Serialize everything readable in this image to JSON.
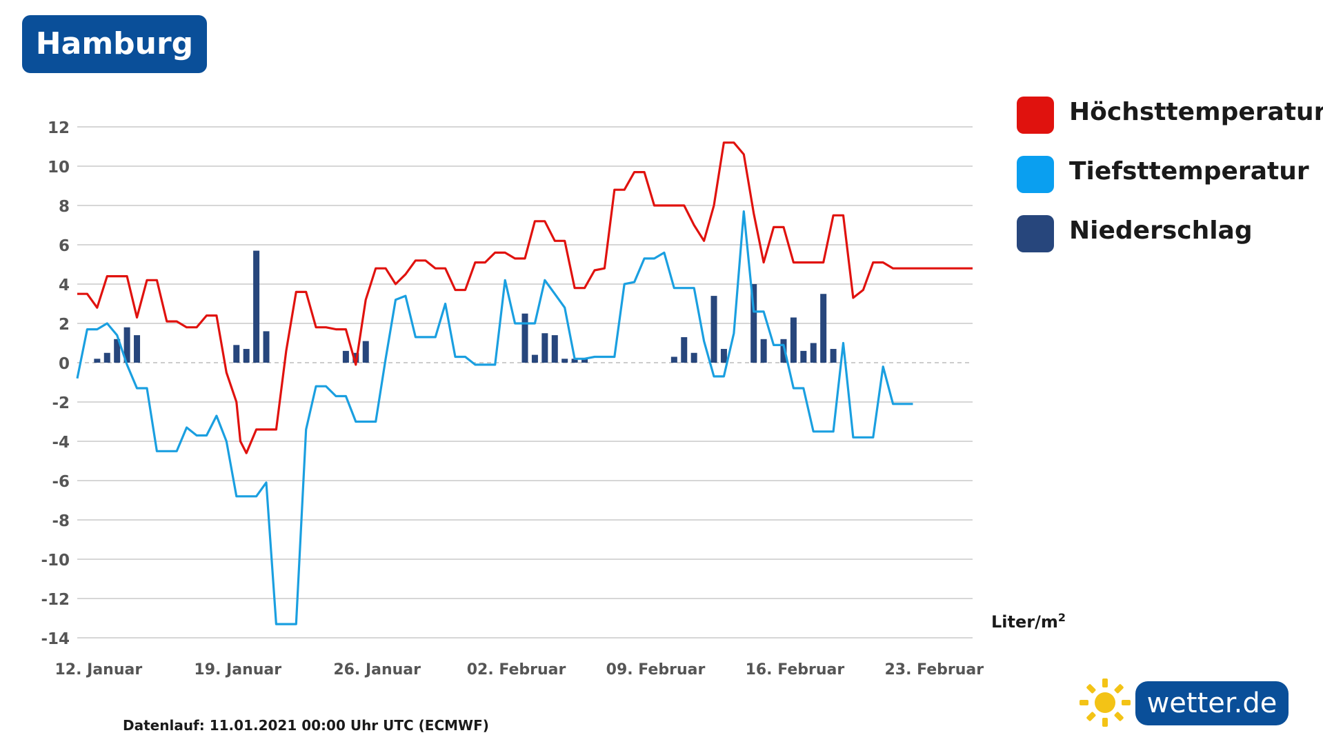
{
  "header": {
    "city": "Hamburg"
  },
  "footer": {
    "run_info": "Datenlauf: 11.01.2021 00:00 Uhr UTC (ECMWF)"
  },
  "logo": {
    "text": "wetter.de"
  },
  "unit": {
    "base": "Liter/m",
    "exp": "2"
  },
  "colors": {
    "max": "#e0120e",
    "min": "#1a9fe0",
    "precip": "#27467c",
    "badge": "#0a4f99",
    "sun": "#f3c316"
  },
  "chart_data": {
    "type": "line",
    "ylim": [
      -14,
      12
    ],
    "yticks": [
      "12",
      "10",
      "8",
      "6",
      "4",
      "2",
      "0",
      "-2",
      "-4",
      "-6",
      "-8",
      "-10",
      "-12",
      "-14"
    ],
    "xlim": [
      0,
      45
    ],
    "x_tick_labels": [
      {
        "x": 1,
        "label": "12. Januar"
      },
      {
        "x": 8,
        "label": "19. Januar"
      },
      {
        "x": 15,
        "label": "26. Januar"
      },
      {
        "x": 22,
        "label": "02. Februar"
      },
      {
        "x": 29,
        "label": "09. Februar"
      },
      {
        "x": 36,
        "label": "16. Februar"
      },
      {
        "x": 43,
        "label": "23. Februar"
      }
    ],
    "legend": [
      "Höchsttemperatur",
      "Tiefsttemperatur",
      "Niederschlag"
    ],
    "series": [
      {
        "name": "Höchsttemperatur",
        "x": [
          0,
          0.5,
          1,
          1.5,
          2,
          2.5,
          3,
          3.5,
          4,
          4.5,
          5,
          5.5,
          6,
          6.5,
          7,
          7.5,
          8,
          8.2,
          8.5,
          9,
          9.5,
          10,
          10.5,
          11,
          11.5,
          12,
          12.5,
          13,
          13.5,
          14,
          14.5,
          15,
          15.5,
          16,
          16.5,
          17,
          17.5,
          18,
          18.5,
          19,
          19.5,
          20,
          20.5,
          21,
          21.5,
          22,
          22.5,
          23,
          23.5,
          24,
          24.5,
          25,
          25.5,
          26,
          26.5,
          27,
          27.5,
          28,
          28.5,
          29,
          29.5,
          30,
          30.5,
          31,
          31.5,
          32,
          32.5,
          33,
          33.5,
          34,
          34.5,
          35,
          35.5,
          36,
          36.5,
          37,
          37.5,
          38,
          38.5,
          39,
          39.5,
          40,
          40.5,
          41,
          41.5,
          42,
          42.5,
          43,
          43.5,
          44,
          44.5,
          45
        ],
        "values": [
          3.5,
          3.5,
          2.8,
          4.4,
          4.4,
          4.4,
          2.3,
          4.2,
          4.2,
          2.1,
          2.1,
          1.8,
          1.8,
          2.4,
          2.4,
          -0.5,
          -2,
          -4,
          -4.6,
          -3.4,
          -3.4,
          -3.4,
          0.6,
          3.6,
          3.6,
          1.8,
          1.8,
          1.7,
          1.7,
          -0.1,
          3.2,
          4.8,
          4.8,
          4,
          4.5,
          5.2,
          5.2,
          4.8,
          4.8,
          3.7,
          3.7,
          5.1,
          5.1,
          5.6,
          5.6,
          5.3,
          5.3,
          7.2,
          7.2,
          6.2,
          6.2,
          3.8,
          3.8,
          4.7,
          4.8,
          8.8,
          8.8,
          9.7,
          9.7,
          8,
          8,
          8,
          8,
          7,
          6.2,
          8,
          11.2,
          11.2,
          10.6,
          7.6,
          5.1,
          6.9,
          6.9,
          5.1,
          5.1,
          5.1,
          5.1,
          7.5,
          7.5,
          3.3,
          3.7,
          5.1,
          5.1,
          4.8,
          4.8,
          4.8,
          4.8,
          4.8,
          4.8,
          4.8,
          4.8,
          4.8
        ]
      },
      {
        "name": "Tiefsttemperatur",
        "x": [
          0,
          0.5,
          1,
          1.5,
          2,
          2.5,
          3,
          3.5,
          4,
          4.5,
          5,
          5.5,
          6,
          6.5,
          7,
          7.5,
          8,
          8.5,
          9,
          9.5,
          10,
          10.5,
          11,
          11.5,
          12,
          12.5,
          13,
          13.5,
          14,
          14.5,
          15,
          15.5,
          16,
          16.5,
          17,
          17.5,
          18,
          18.5,
          19,
          19.5,
          20,
          20.5,
          21,
          21.5,
          22,
          22.5,
          23,
          23.5,
          24,
          24.5,
          25,
          25.5,
          26,
          26.5,
          27,
          27.5,
          28,
          28.5,
          29,
          29.5,
          30,
          30.5,
          31,
          31.5,
          32,
          32.5,
          33,
          33.5,
          34,
          34.5,
          35,
          35.5,
          36,
          36.5,
          37,
          37.5,
          38,
          38.5,
          39,
          39.5,
          40,
          40.5,
          41,
          41.5,
          42
        ],
        "values": [
          -0.8,
          1.7,
          1.7,
          2,
          1.4,
          -0.1,
          -1.3,
          -1.3,
          -4.5,
          -4.5,
          -4.5,
          -3.3,
          -3.7,
          -3.7,
          -2.7,
          -4,
          -6.8,
          -6.8,
          -6.8,
          -6.1,
          -13.3,
          -13.3,
          -13.3,
          -3.4,
          -1.2,
          -1.2,
          -1.7,
          -1.7,
          -3,
          -3,
          -3,
          0.2,
          3.2,
          3.4,
          1.3,
          1.3,
          1.3,
          3,
          0.3,
          0.3,
          -0.1,
          -0.1,
          -0.1,
          4.2,
          2,
          2,
          2,
          4.2,
          3.5,
          2.8,
          0.2,
          0.2,
          0.3,
          0.3,
          0.3,
          4,
          4.1,
          5.3,
          5.3,
          5.6,
          3.8,
          3.8,
          3.8,
          1.1,
          -0.7,
          -0.7,
          1.5,
          7.7,
          2.6,
          2.6,
          0.9,
          0.9,
          -1.3,
          -1.3,
          -3.5,
          -3.5,
          -3.5,
          1,
          -3.8,
          -3.8,
          -3.8,
          -0.2,
          -2.1,
          -2.1,
          -2.1
        ]
      },
      {
        "name": "Niederschlag",
        "type": "bar",
        "x": [
          1,
          1.5,
          2,
          2.5,
          3,
          8,
          8.5,
          9,
          9.5,
          13.5,
          14,
          14.5,
          22.5,
          23,
          23.5,
          24,
          24.5,
          25,
          25.5,
          30,
          30.5,
          31,
          32,
          32.5,
          34,
          34.5,
          35.5,
          36,
          36.5,
          37,
          37.5,
          38
        ],
        "values": [
          0.2,
          0.5,
          1.2,
          1.8,
          1.4,
          0.9,
          0.7,
          5.7,
          1.6,
          0.6,
          0.5,
          1.1,
          2.5,
          0.4,
          1.5,
          1.4,
          0.2,
          0.2,
          0.2,
          0.3,
          1.3,
          0.5,
          3.4,
          0.7,
          4,
          1.2,
          1.2,
          2.3,
          0.6,
          1,
          3.5,
          0.7
        ]
      }
    ]
  }
}
